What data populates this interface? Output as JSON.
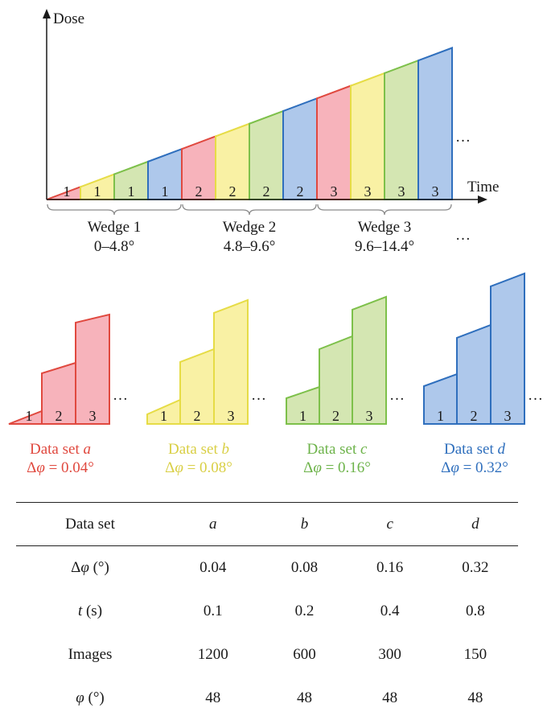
{
  "colors": {
    "red": {
      "fill": "#f7b3bb",
      "stroke": "#e0493f",
      "text": "#e0493f"
    },
    "yellow": {
      "fill": "#f9f1a4",
      "stroke": "#e6dc46",
      "text": "#d9cf45"
    },
    "green": {
      "fill": "#d4e6b2",
      "stroke": "#7dc04a",
      "text": "#6db34a"
    },
    "blue": {
      "fill": "#aec8eb",
      "stroke": "#2f6fbd",
      "text": "#2f6fbd"
    },
    "ink": "#1a1a1a"
  },
  "top": {
    "y_label": "Dose",
    "x_label": "Time",
    "ellipsis": "…",
    "wedges": [
      {
        "name": "Wedge 1",
        "range": "0–4.8°",
        "number": "1"
      },
      {
        "name": "Wedge 2",
        "range": "4.8–9.6°",
        "number": "2"
      },
      {
        "name": "Wedge 3",
        "range": "9.6–14.4°",
        "number": "3"
      }
    ],
    "segment_colors": [
      "red",
      "yellow",
      "green",
      "blue"
    ]
  },
  "datasets": [
    {
      "color": "red",
      "label_prefix": "Data set ",
      "letter": "a",
      "delta_prefix": "Δ",
      "phi": "φ",
      "delta_value": " = 0.04°",
      "numbers": [
        "1",
        "2",
        "3"
      ]
    },
    {
      "color": "yellow",
      "label_prefix": "Data set ",
      "letter": "b",
      "delta_prefix": "Δ",
      "phi": "φ",
      "delta_value": " = 0.08°",
      "numbers": [
        "1",
        "2",
        "3"
      ]
    },
    {
      "color": "green",
      "label_prefix": "Data set ",
      "letter": "c",
      "delta_prefix": "Δ",
      "phi": "φ",
      "delta_value": " = 0.16°",
      "numbers": [
        "1",
        "2",
        "3"
      ]
    },
    {
      "color": "blue",
      "label_prefix": "Data set ",
      "letter": "d",
      "delta_prefix": "Δ",
      "phi": "φ",
      "delta_value": " = 0.32°",
      "numbers": [
        "1",
        "2",
        "3"
      ]
    }
  ],
  "table": {
    "header": {
      "label": "Data set",
      "cols": [
        "a",
        "b",
        "c",
        "d"
      ]
    },
    "rows": [
      {
        "label_main": "Δ",
        "label_ital": "φ",
        "label_unit": " (°)",
        "values": [
          "0.04",
          "0.08",
          "0.16",
          "0.32"
        ]
      },
      {
        "label_main": "",
        "label_ital": "t",
        "label_unit": " (s)",
        "values": [
          "0.1",
          "0.2",
          "0.4",
          "0.8"
        ]
      },
      {
        "label_main": "Images",
        "label_ital": "",
        "label_unit": "",
        "values": [
          "1200",
          "600",
          "300",
          "150"
        ]
      },
      {
        "label_main": "",
        "label_ital": "φ",
        "label_unit": " (°)",
        "values": [
          "48",
          "48",
          "48",
          "48"
        ]
      }
    ]
  }
}
